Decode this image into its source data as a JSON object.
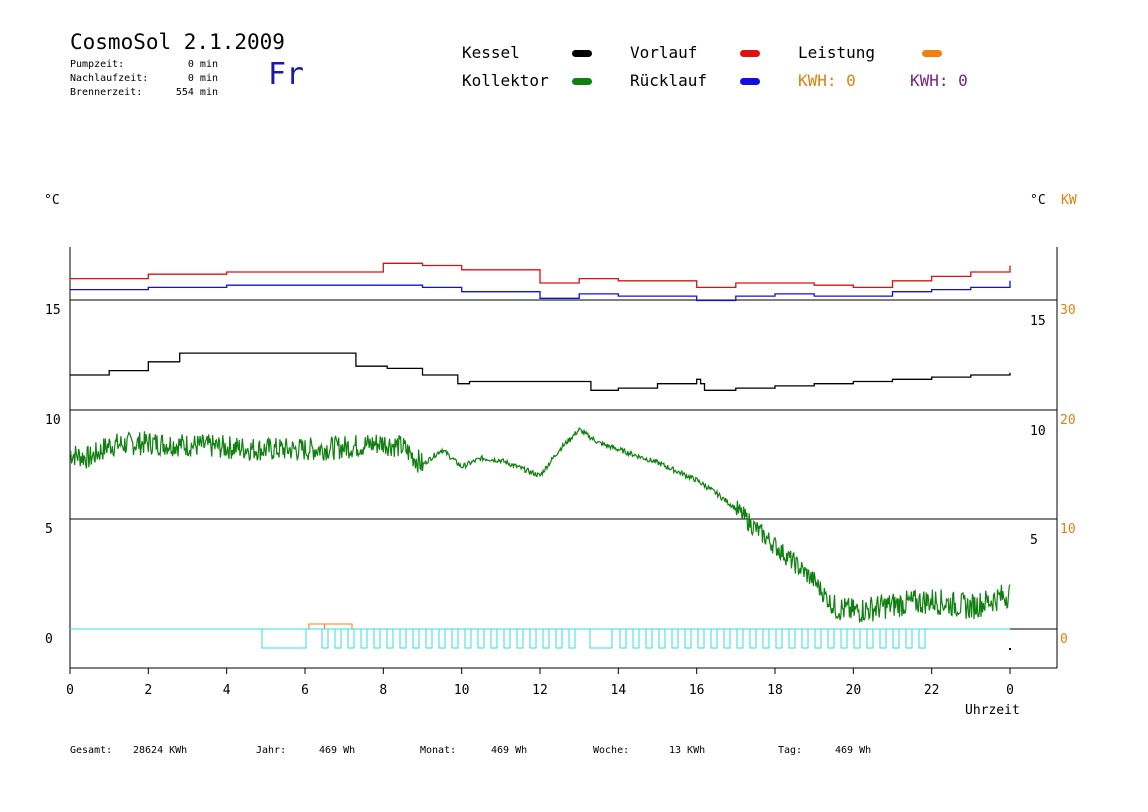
{
  "header": {
    "title": "CosmoSol 2.1.2009",
    "day": "Fr",
    "stats": [
      {
        "label": "Pumpzeit:",
        "value": "0 min"
      },
      {
        "label": "Nachlaufzeit:",
        "value": "0 min"
      },
      {
        "label": "Brennerzeit:",
        "value": "554 min"
      }
    ]
  },
  "legend": {
    "items": [
      {
        "label": "Kessel",
        "color": "#000000"
      },
      {
        "label": "Vorlauf",
        "color": "#e01010"
      },
      {
        "label": "Leistung",
        "color": "#f08010"
      },
      {
        "label": "Kollektor",
        "color": "#108010"
      },
      {
        "label": "Rücklauf",
        "color": "#1010e0"
      }
    ],
    "kwh_left": {
      "text": "KWH: 0",
      "color": "#e08010"
    },
    "kwh_right": {
      "text": "KWH: 0",
      "color": "#802080"
    }
  },
  "units": {
    "left": "°C",
    "right_c": "°C",
    "right_kw": "KW",
    "kw_color": "#e08010"
  },
  "footer": [
    {
      "label": "Gesamt:",
      "value": "28624 KWh"
    },
    {
      "label": "Jahr:",
      "value": "469 Wh"
    },
    {
      "label": "Monat:",
      "value": "469 Wh"
    },
    {
      "label": "Woche:",
      "value": "13 KWh"
    },
    {
      "label": "Tag:",
      "value": "469 Wh"
    }
  ],
  "chart_data": {
    "type": "line",
    "xlabel": "Uhrzeit",
    "x_ticks": [
      "0",
      "2",
      "4",
      "6",
      "8",
      "10",
      "12",
      "14",
      "16",
      "18",
      "20",
      "22",
      "0"
    ],
    "xlim": [
      0,
      24
    ],
    "grid": "horizontal lines at 0, 5, 10, 15 (left °C scale)",
    "left_axis": {
      "unit": "°C",
      "ticks": [
        0,
        5,
        10,
        15
      ]
    },
    "right_axis_c": {
      "unit": "°C",
      "ticks": [
        5,
        10,
        15
      ]
    },
    "right_axis_kw": {
      "unit": "KW",
      "ticks": [
        0,
        10,
        20,
        30
      ],
      "color": "#e08010"
    },
    "series": [
      {
        "name": "Vorlauf",
        "color": "#e01010",
        "x": [
          0,
          2,
          4,
          6,
          8,
          9,
          10,
          12,
          13,
          14,
          16,
          17,
          18,
          19,
          20,
          21,
          22,
          23,
          24
        ],
        "y": [
          16.0,
          16.2,
          16.3,
          16.3,
          16.7,
          16.6,
          16.4,
          15.8,
          16.0,
          15.9,
          15.6,
          15.8,
          15.8,
          15.7,
          15.6,
          15.9,
          16.1,
          16.3,
          16.6
        ]
      },
      {
        "name": "Rücklauf",
        "color": "#1010e0",
        "x": [
          0,
          2,
          4,
          6,
          8,
          9,
          10,
          12,
          13,
          14,
          16,
          17,
          18,
          19,
          20,
          21,
          22,
          23,
          24
        ],
        "y": [
          15.5,
          15.6,
          15.7,
          15.7,
          15.7,
          15.6,
          15.4,
          15.1,
          15.3,
          15.2,
          15.0,
          15.2,
          15.3,
          15.2,
          15.2,
          15.4,
          15.5,
          15.6,
          15.9
        ]
      },
      {
        "name": "Kessel",
        "color": "#000000",
        "x": [
          0,
          1,
          2,
          2.8,
          4,
          6,
          7.1,
          7.3,
          8.1,
          9,
          9.9,
          10.2,
          12,
          13.1,
          13.3,
          14,
          15,
          16,
          16.1,
          16.2,
          17,
          18,
          19,
          20,
          21,
          22,
          23,
          24
        ],
        "y": [
          11.6,
          11.8,
          12.2,
          12.6,
          12.6,
          12.6,
          12.6,
          12.0,
          11.9,
          11.6,
          11.2,
          11.3,
          11.3,
          11.3,
          10.9,
          11.0,
          11.2,
          11.4,
          11.2,
          10.9,
          11.0,
          11.1,
          11.2,
          11.3,
          11.4,
          11.5,
          11.6,
          11.7
        ]
      },
      {
        "name": "Kollektor",
        "color": "#108010",
        "x": [
          0,
          0.5,
          1,
          2,
          3,
          4,
          5,
          6,
          7,
          8,
          8.5,
          9,
          9.5,
          10,
          10.5,
          11,
          12,
          12.5,
          13,
          13.5,
          14,
          15,
          16,
          16.5,
          17,
          17.5,
          18,
          18.5,
          19,
          19.5,
          20,
          21,
          22,
          23,
          24
        ],
        "y": [
          8.0,
          7.8,
          8.4,
          8.5,
          8.4,
          8.3,
          8.2,
          8.2,
          8.3,
          8.5,
          8.3,
          7.5,
          8.2,
          7.4,
          7.8,
          7.7,
          7.0,
          8.2,
          9.1,
          8.5,
          8.2,
          7.6,
          6.8,
          6.2,
          5.5,
          4.6,
          3.8,
          3.0,
          2.2,
          1.0,
          0.8,
          1.1,
          1.3,
          1.0,
          1.6
        ]
      },
      {
        "name": "Leistung",
        "color": "#f08010",
        "x": [
          6.1,
          6.5,
          7.2
        ],
        "y": [
          0.1,
          0.1,
          0.1
        ]
      }
    ]
  }
}
